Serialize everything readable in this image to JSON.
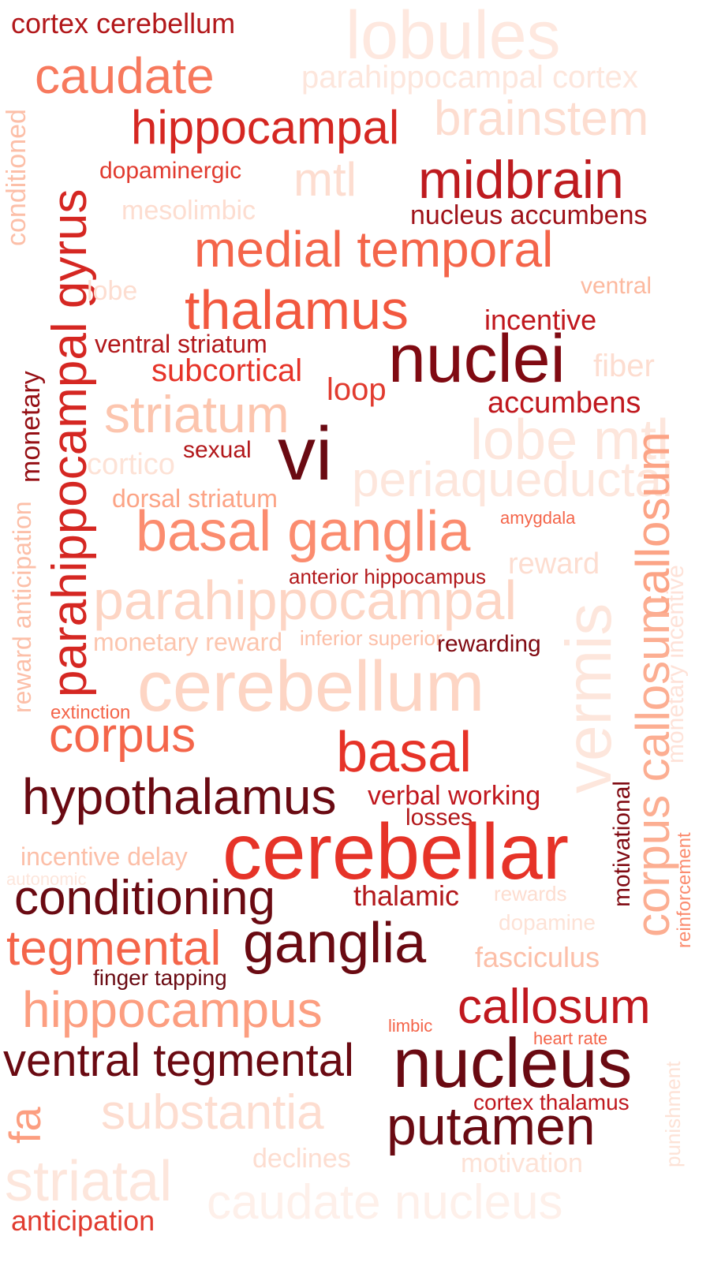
{
  "words": [
    {
      "text": "cortex cerebellum",
      "color": "#b2181b"
    },
    {
      "text": "lobules",
      "color": "#fee8df"
    },
    {
      "text": "caudate",
      "color": "#f7795d"
    },
    {
      "text": "parahippocampal cortex",
      "color": "#fde6dc"
    },
    {
      "text": "hippocampal",
      "color": "#d52722"
    },
    {
      "text": "brainstem",
      "color": "#fdddd0"
    },
    {
      "text": "conditioned",
      "color": "#fcbfa8"
    },
    {
      "text": "parahippocampal gyrus",
      "color": "#d52722"
    },
    {
      "text": "dopaminergic",
      "color": "#e13b2f"
    },
    {
      "text": "mtl",
      "color": "#fdddd0"
    },
    {
      "text": "midbrain",
      "color": "#be1b1f"
    },
    {
      "text": "mesolimbic",
      "color": "#fdddd0"
    },
    {
      "text": "nucleus accumbens",
      "color": "#9f1219"
    },
    {
      "text": "medial temporal",
      "color": "#f4654a"
    },
    {
      "text": "lobe",
      "color": "#fdddd0"
    },
    {
      "text": "ventral",
      "color": "#fcb99f"
    },
    {
      "text": "thalamus",
      "color": "#f2583f"
    },
    {
      "text": "incentive",
      "color": "#c0181e"
    },
    {
      "text": "monetary",
      "color": "#961015"
    },
    {
      "text": "ventral striatum",
      "color": "#b2181b"
    },
    {
      "text": "nuclei",
      "color": "#800a12"
    },
    {
      "text": "fiber",
      "color": "#fdddd0"
    },
    {
      "text": "subcortical",
      "color": "#e63328"
    },
    {
      "text": "loop",
      "color": "#e13b2f"
    },
    {
      "text": "accumbens",
      "color": "#c0181e"
    },
    {
      "text": "striatum",
      "color": "#fcc5ae"
    },
    {
      "text": "lobe mtl",
      "color": "#fde6dc"
    },
    {
      "text": "cortico",
      "color": "#fde2d6"
    },
    {
      "text": "sexual",
      "color": "#b2181b"
    },
    {
      "text": "vi",
      "color": "#6a0a12"
    },
    {
      "text": "periaqueductal",
      "color": "#fde6dc"
    },
    {
      "text": "reward anticipation",
      "color": "#fcbfa8"
    },
    {
      "text": "dorsal striatum",
      "color": "#fca486"
    },
    {
      "text": "amygdala",
      "color": "#f4654a"
    },
    {
      "text": "basal ganglia",
      "color": "#fb8c6f"
    },
    {
      "text": "callosum",
      "color": "#fca486"
    },
    {
      "text": "monetary incentive",
      "color": "#fee2d8"
    },
    {
      "text": "reward",
      "color": "#fdddd0"
    },
    {
      "text": "anterior hippocampus",
      "color": "#b2181b"
    },
    {
      "text": "parahippocampal",
      "color": "#fdd5c4"
    },
    {
      "text": "vermis",
      "color": "#fde6dc"
    },
    {
      "text": "monetary reward",
      "color": "#fcc5ae"
    },
    {
      "text": "inferior superior",
      "color": "#fcbfa8"
    },
    {
      "text": "rewarding",
      "color": "#800a12"
    },
    {
      "text": "cerebellum",
      "color": "#fdd5c4"
    },
    {
      "text": "extinction",
      "color": "#f4654a"
    },
    {
      "text": "corpus",
      "color": "#f4654a"
    },
    {
      "text": "corpus callosum",
      "color": "#fcae92"
    },
    {
      "text": "basal",
      "color": "#e63328"
    },
    {
      "text": "hypothalamus",
      "color": "#6a0a12"
    },
    {
      "text": "verbal working",
      "color": "#c0181e"
    },
    {
      "text": "motivational",
      "color": "#800a12"
    },
    {
      "text": "losses",
      "color": "#b2181b"
    },
    {
      "text": "reinforcement",
      "color": "#fb8c6f"
    },
    {
      "text": "incentive delay",
      "color": "#fcbfa8"
    },
    {
      "text": "cerebellar",
      "color": "#e63328"
    },
    {
      "text": "autonomic",
      "color": "#fde6dc"
    },
    {
      "text": "conditioning",
      "color": "#6a0a12"
    },
    {
      "text": "thalamic",
      "color": "#b2181b"
    },
    {
      "text": "rewards",
      "color": "#fdddd0"
    },
    {
      "text": "dopamine",
      "color": "#fde2d6"
    },
    {
      "text": "tegmental",
      "color": "#f4654a"
    },
    {
      "text": "ganglia",
      "color": "#6a0a12"
    },
    {
      "text": "fasciculus",
      "color": "#fcbfa8"
    },
    {
      "text": "finger tapping",
      "color": "#6a0a12"
    },
    {
      "text": "hippocampus",
      "color": "#fc9e80"
    },
    {
      "text": "callosum",
      "color": "#c0181e"
    },
    {
      "text": "limbic",
      "color": "#f4654a"
    },
    {
      "text": "heart rate",
      "color": "#f4654a"
    },
    {
      "text": "punishment",
      "color": "#fde2d6"
    },
    {
      "text": "ventral tegmental",
      "color": "#6a0a12"
    },
    {
      "text": "nucleus",
      "color": "#6a0a12"
    },
    {
      "text": "fa",
      "color": "#fc9e80"
    },
    {
      "text": "substantia",
      "color": "#fdddd0"
    },
    {
      "text": "cortex thalamus",
      "color": "#c0181e"
    },
    {
      "text": "putamen",
      "color": "#6a0a12"
    },
    {
      "text": "declines",
      "color": "#fdddd0"
    },
    {
      "text": "motivation",
      "color": "#fde2d6"
    },
    {
      "text": "striatal",
      "color": "#fde6dc"
    },
    {
      "text": "caudate nucleus",
      "color": "#fef0ea"
    },
    {
      "text": "anticipation",
      "color": "#e13b2f"
    }
  ]
}
